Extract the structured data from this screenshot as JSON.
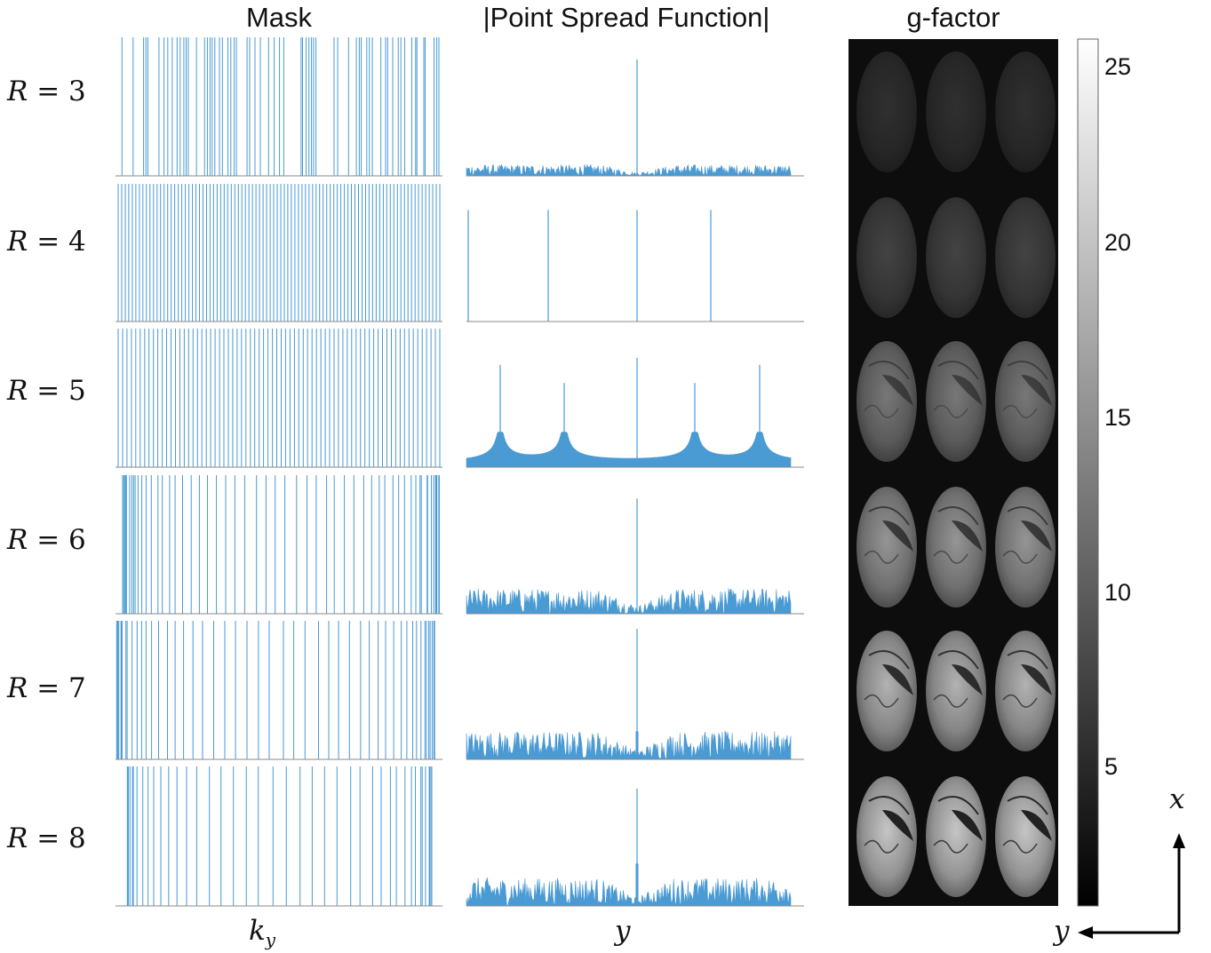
{
  "titles": {
    "mask": "Mask",
    "psf": "|Point Spread Function|",
    "gfactor": "g-factor"
  },
  "rows": [
    {
      "label": "R = 3",
      "var": "R",
      "value": "3"
    },
    {
      "label": "R = 4",
      "var": "R",
      "value": "4"
    },
    {
      "label": "R = 5",
      "var": "R",
      "value": "5"
    },
    {
      "label": "R = 6",
      "var": "R",
      "value": "6"
    },
    {
      "label": "R = 7",
      "var": "R",
      "value": "7"
    },
    {
      "label": "R = 8",
      "var": "R",
      "value": "8"
    }
  ],
  "axes": {
    "mask_x": {
      "base": "k",
      "sub": "y"
    },
    "psf_x": "y",
    "image_y": "y",
    "image_x": "x"
  },
  "colorbar": {
    "ticks": [
      "5",
      "10",
      "15",
      "20",
      "25"
    ],
    "range": [
      1,
      25.8
    ]
  },
  "colors": {
    "line": "#4a9ad4",
    "axis": "#888888"
  }
}
